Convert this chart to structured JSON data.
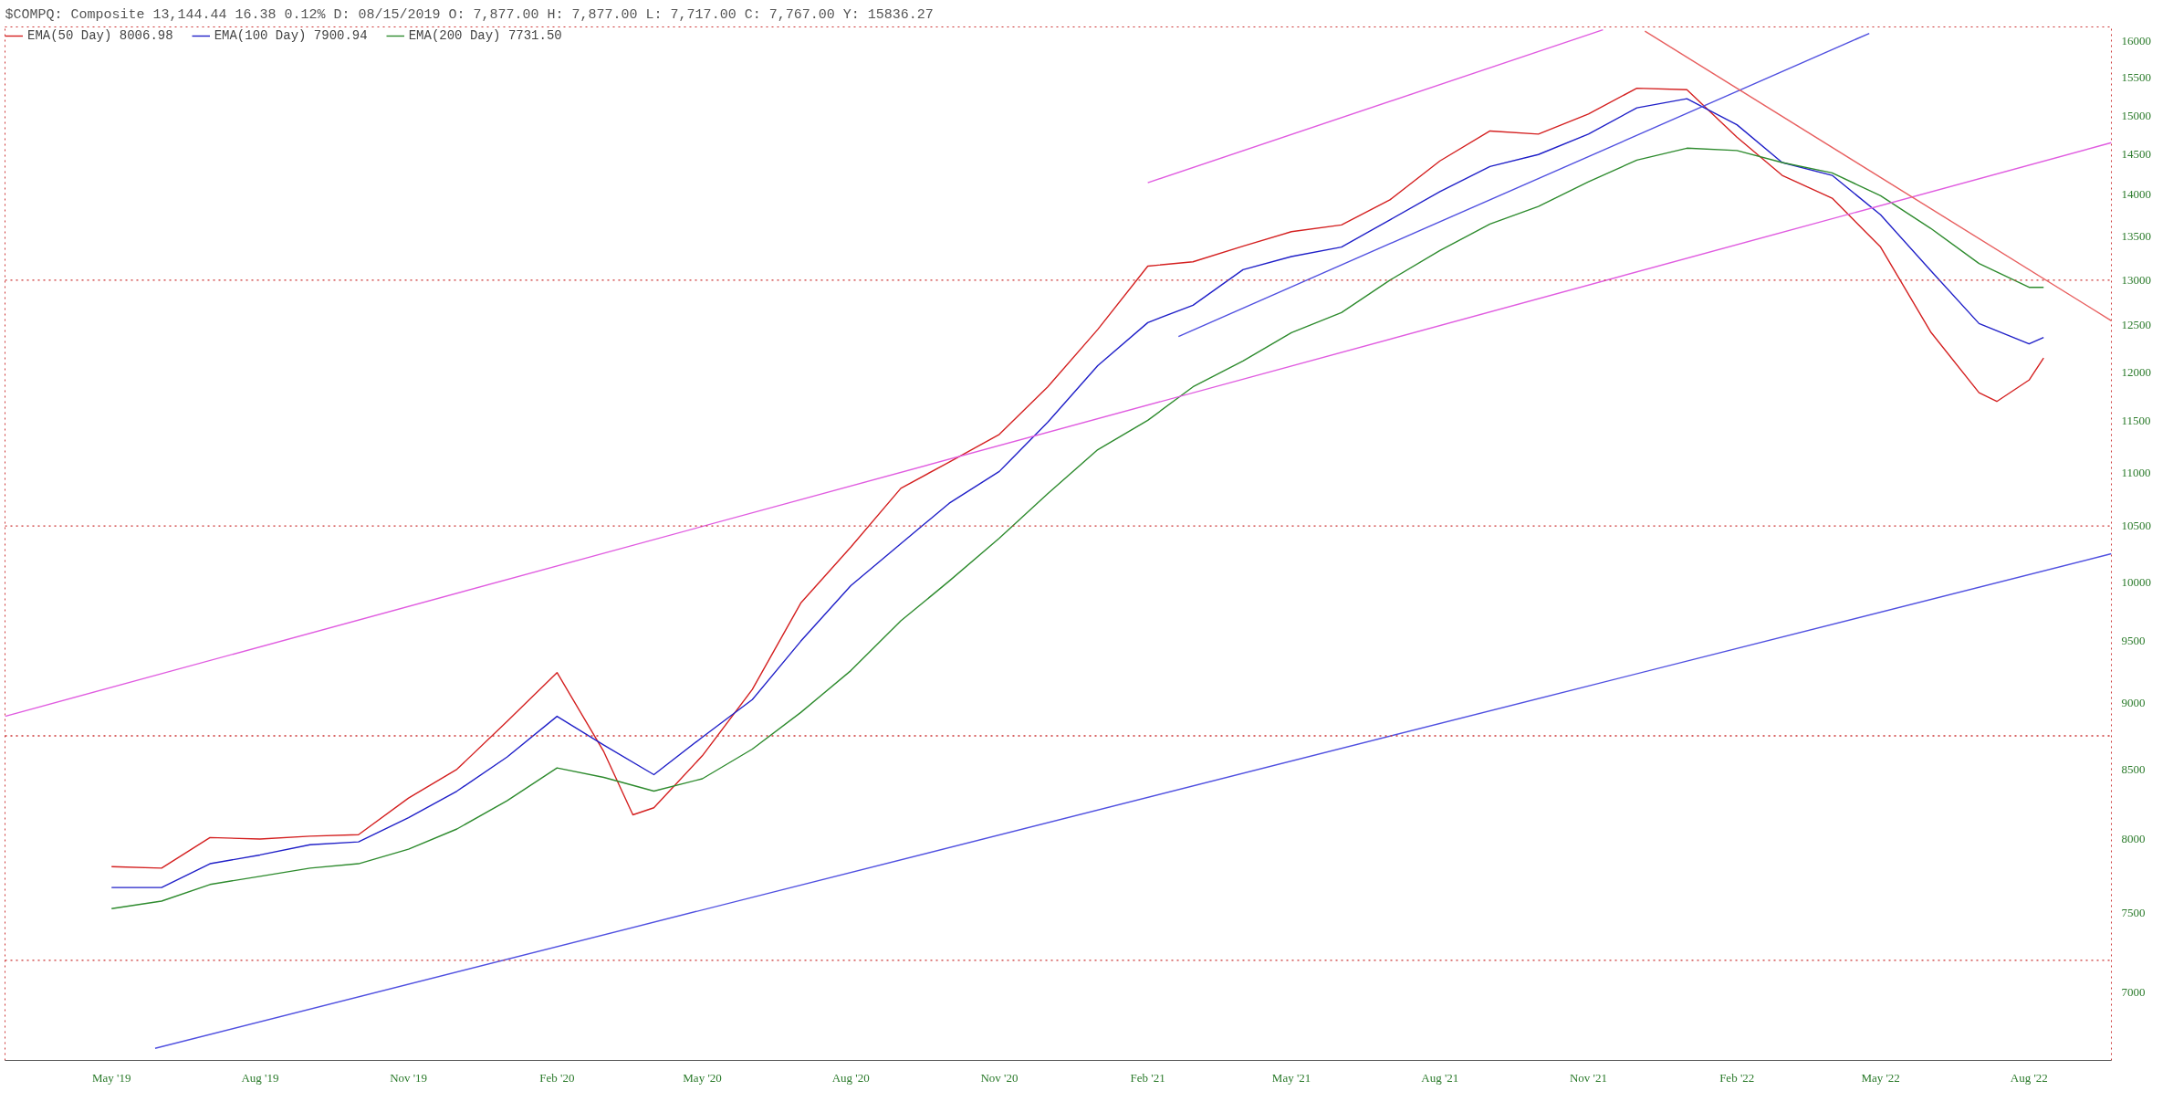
{
  "chart_data": {
    "type": "line",
    "title": "$COMPQ: Composite 13,144.44 16.38 0.12% D: 08/15/2019 O: 7,877.00 H: 7,877.00 L: 7,717.00 C: 7,767.00 Y: 15836.27",
    "x": [
      "2019-05-01",
      "2019-06-01",
      "2019-07-01",
      "2019-08-01",
      "2019-09-01",
      "2019-10-01",
      "2019-11-01",
      "2019-12-01",
      "2020-01-01",
      "2020-02-01",
      "2020-03-01",
      "2020-04-01",
      "2020-05-01",
      "2020-06-01",
      "2020-07-01",
      "2020-08-01",
      "2020-09-01",
      "2020-10-01",
      "2020-11-01",
      "2020-12-01",
      "2021-01-01",
      "2021-02-01",
      "2021-03-01",
      "2021-04-01",
      "2021-05-01",
      "2021-06-01",
      "2021-07-01",
      "2021-08-01",
      "2021-09-01",
      "2021-10-01",
      "2021-11-01",
      "2021-12-01",
      "2022-01-01",
      "2022-02-01",
      "2022-03-01",
      "2022-04-01",
      "2022-05-01",
      "2022-06-01",
      "2022-07-01",
      "2022-08-01",
      "2022-08-10"
    ],
    "series": [
      {
        "name": "EMA(50 Day) 8006.98",
        "color": "#d42020",
        "x": [
          "2019-05-01",
          "2019-06-01",
          "2019-07-01",
          "2019-08-01",
          "2019-09-01",
          "2019-10-01",
          "2019-11-01",
          "2019-12-01",
          "2020-01-01",
          "2020-02-01",
          "2020-03-01",
          "2020-03-19",
          "2020-04-01",
          "2020-05-01",
          "2020-06-01",
          "2020-07-01",
          "2020-08-01",
          "2020-09-01",
          "2020-10-01",
          "2020-11-01",
          "2020-12-01",
          "2021-01-01",
          "2021-02-01",
          "2021-03-01",
          "2021-04-01",
          "2021-05-01",
          "2021-06-01",
          "2021-07-01",
          "2021-08-01",
          "2021-09-01",
          "2021-10-01",
          "2021-11-01",
          "2021-12-01",
          "2022-01-01",
          "2022-02-01",
          "2022-03-01",
          "2022-04-01",
          "2022-05-01",
          "2022-06-01",
          "2022-07-01",
          "2022-07-12",
          "2022-08-01",
          "2022-08-10"
        ],
        "values": [
          7810,
          7800,
          8010,
          8000,
          8020,
          8030,
          8290,
          8500,
          8860,
          9245,
          8630,
          8170,
          8220,
          8600,
          9110,
          9820,
          10310,
          10850,
          11100,
          11370,
          11850,
          12455,
          13160,
          13210,
          13390,
          13560,
          13640,
          13940,
          14420,
          14800,
          14760,
          15020,
          15360,
          15340,
          14720,
          14240,
          13960,
          13380,
          12430,
          11790,
          11700,
          11920,
          12150
        ]
      },
      {
        "name": "EMA(100 Day) 7900.94",
        "color": "#2020c8",
        "values": [
          7670,
          7670,
          7830,
          7890,
          7960,
          7980,
          8150,
          8340,
          8590,
          8900,
          8680,
          8460,
          8740,
          9030,
          9500,
          9970,
          10340,
          10710,
          11010,
          11490,
          12070,
          12530,
          12720,
          13120,
          13270,
          13380,
          13700,
          14040,
          14350,
          14500,
          14760,
          15100,
          15220,
          14880,
          14400,
          14240,
          13760,
          13110,
          12520,
          12300,
          12370
        ]
      },
      {
        "name": "EMA(200 Day) 7731.50",
        "color": "#2e8b2e",
        "values": [
          7530,
          7580,
          7690,
          7745,
          7800,
          7830,
          7930,
          8070,
          8270,
          8510,
          8440,
          8340,
          8430,
          8650,
          8930,
          9260,
          9670,
          10010,
          10390,
          10800,
          11220,
          11510,
          11850,
          12120,
          12420,
          12640,
          13000,
          13340,
          13650,
          13860,
          14160,
          14430,
          14580,
          14550,
          14400,
          14270,
          13990,
          13600,
          13190,
          12920,
          12920
        ]
      },
      {
        "color": "#e05ce0",
        "x": [
          "2019-02-24",
          "2022-09-21"
        ],
        "values": [
          8900,
          14650
        ]
      },
      {
        "color": "#e05ce0",
        "x": [
          "2021-02-01",
          "2021-11-10"
        ],
        "values": [
          14150,
          16160
        ]
      },
      {
        "color": "#5050e0",
        "x": [
          "2021-02-20",
          "2022-04-24"
        ],
        "values": [
          12380,
          16110
        ]
      },
      {
        "color": "#5050e0",
        "x": [
          "2019-05-28",
          "2022-09-21"
        ],
        "values": [
          6670,
          10250
        ]
      },
      {
        "color": "#e86060",
        "x": [
          "2021-12-06",
          "2022-09-21"
        ],
        "values": [
          16140,
          12550
        ]
      }
    ],
    "ref_lines": [
      {
        "axis": "y",
        "value": 13000,
        "color": "#cc3333",
        "line_style": "dotted"
      },
      {
        "axis": "y",
        "value": 10500,
        "color": "#cc3333",
        "line_style": "dotted"
      },
      {
        "axis": "y",
        "value": 8750,
        "color": "#cc3333",
        "line_style": "dotted"
      },
      {
        "axis": "y",
        "value": 7200,
        "color": "#cc3333",
        "line_style": "dotted"
      }
    ],
    "log": "y",
    "xlim": [
      "2019-02-24",
      "2022-09-21"
    ],
    "ylim": [
      6600,
      16200
    ],
    "xticks": [
      {
        "value": "2019-05-01",
        "label": "May '19"
      },
      {
        "value": "2019-08-01",
        "label": "Aug '19"
      },
      {
        "value": "2019-11-01",
        "label": "Nov '19"
      },
      {
        "value": "2020-02-01",
        "label": "Feb '20"
      },
      {
        "value": "2020-05-01",
        "label": "May '20"
      },
      {
        "value": "2020-08-01",
        "label": "Aug '20"
      },
      {
        "value": "2020-11-01",
        "label": "Nov '20"
      },
      {
        "value": "2021-02-01",
        "label": "Feb '21"
      },
      {
        "value": "2021-05-01",
        "label": "May '21"
      },
      {
        "value": "2021-08-01",
        "label": "Aug '21"
      },
      {
        "value": "2021-11-01",
        "label": "Nov '21"
      },
      {
        "value": "2022-02-01",
        "label": "Feb '22"
      },
      {
        "value": "2022-05-01",
        "label": "May '22"
      },
      {
        "value": "2022-08-01",
        "label": "Aug '22"
      }
    ],
    "yticks": [
      7000,
      7500,
      8000,
      8500,
      9000,
      9500,
      10000,
      10500,
      11000,
      11500,
      12000,
      12500,
      13000,
      13500,
      14000,
      14500,
      15000,
      15500,
      16000
    ],
    "grid": false,
    "legend": "top left",
    "marker": "none",
    "line_style": "solid"
  }
}
